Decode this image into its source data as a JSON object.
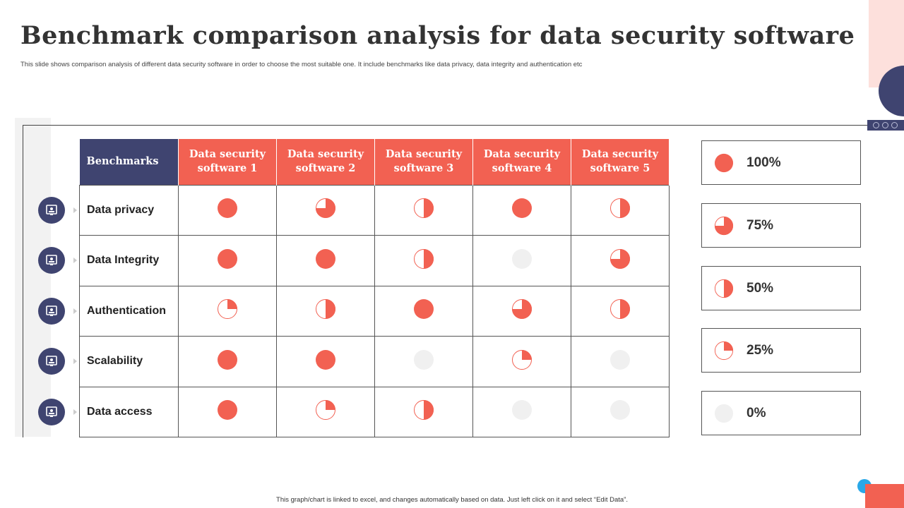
{
  "title": "Benchmark comparison analysis for data security software",
  "subtitle": "This slide shows comparison analysis of different data security software in order to choose the most suitable one. It include benchmarks like data privacy, data integrity and authentication etc",
  "colors": {
    "accent": "#f26152",
    "navy": "#3f4470",
    "empty": "#f0f0f0",
    "pink": "#fde0dc"
  },
  "table": {
    "header": "Benchmarks",
    "columns": [
      "Data security software 1",
      "Data security software 2",
      "Data security software 3",
      "Data security software 4",
      "Data security software 5"
    ],
    "rows": [
      {
        "label": "Data privacy",
        "icon": "presentation-analytics-icon",
        "values": [
          100,
          75,
          50,
          100,
          50
        ]
      },
      {
        "label": "Data Integrity",
        "icon": "server-lock-icon",
        "values": [
          100,
          100,
          50,
          0,
          75
        ]
      },
      {
        "label": "Authentication",
        "icon": "id-badge-phone-icon",
        "values": [
          25,
          50,
          100,
          75,
          50
        ]
      },
      {
        "label": "Scalability",
        "icon": "cube-expand-icon",
        "values": [
          100,
          100,
          0,
          25,
          0
        ]
      },
      {
        "label": "Data access",
        "icon": "monitor-user-icon",
        "values": [
          100,
          25,
          50,
          0,
          0
        ]
      }
    ]
  },
  "legend": [
    {
      "value": 100,
      "label": "100%"
    },
    {
      "value": 75,
      "label": "75%"
    },
    {
      "value": 50,
      "label": "50%"
    },
    {
      "value": 25,
      "label": "25%"
    },
    {
      "value": 0,
      "label": "0%"
    }
  ],
  "footer": "This graph/chart is linked to excel, and changes automatically based on data. Just left click on it and select “Edit Data”."
}
